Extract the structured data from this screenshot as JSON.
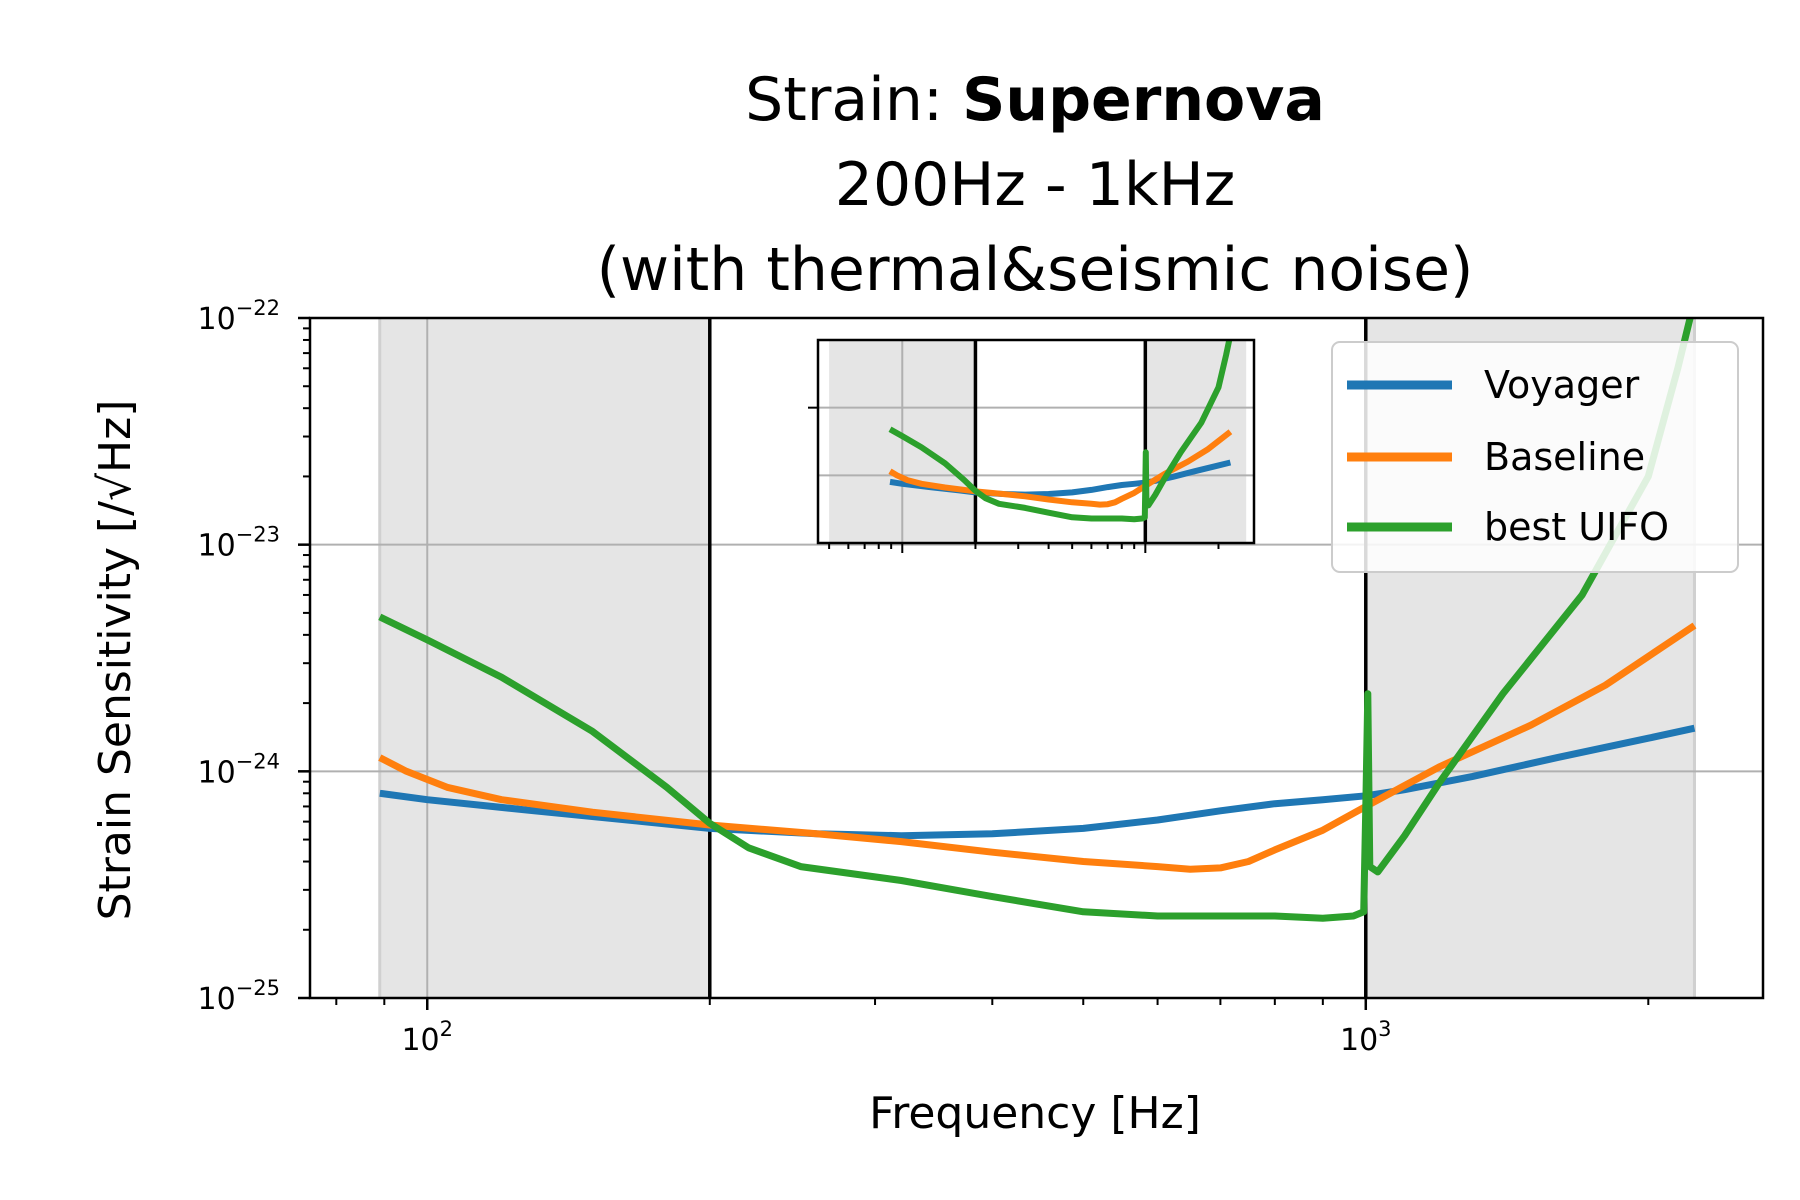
{
  "chart_data": {
    "type": "line",
    "title_prefix": "Strain: ",
    "title_bold": "Supernova",
    "title_line2": "200Hz - 1kHz",
    "title_line3": "(with thermal&seismic noise)",
    "xlabel": "Frequency [Hz]",
    "ylabel": "Strain Sensitivity [/√Hz]",
    "xscale": "log",
    "yscale": "log",
    "xlim": [
      75,
      2650
    ],
    "ylim": [
      1e-25,
      1e-22
    ],
    "grid": true,
    "legend_position": "top-right",
    "x_tick_labels": [
      {
        "value": 100,
        "base": "10",
        "exp": "2"
      },
      {
        "value": 1000,
        "base": "10",
        "exp": "3"
      }
    ],
    "y_tick_labels": [
      {
        "value": 1e-22,
        "base": "10",
        "exp": "−22"
      },
      {
        "value": 1e-23,
        "base": "10",
        "exp": "−23"
      },
      {
        "value": 1e-24,
        "base": "10",
        "exp": "−24"
      },
      {
        "value": 1e-25,
        "base": "10",
        "exp": "−25"
      }
    ],
    "target_band_hz": [
      200,
      1000
    ],
    "shaded_regions_hz": [
      [
        89,
        200
      ],
      [
        1000,
        2240
      ]
    ],
    "series": [
      {
        "name": "Voyager",
        "color": "#1f77b4",
        "points": [
          [
            89,
            8e-25
          ],
          [
            100,
            7.5e-25
          ],
          [
            130,
            6.7e-25
          ],
          [
            170,
            6e-25
          ],
          [
            200,
            5.6e-25
          ],
          [
            260,
            5.3e-25
          ],
          [
            320,
            5.2e-25
          ],
          [
            400,
            5.3e-25
          ],
          [
            500,
            5.6e-25
          ],
          [
            600,
            6.1e-25
          ],
          [
            700,
            6.7e-25
          ],
          [
            800,
            7.2e-25
          ],
          [
            900,
            7.5e-25
          ],
          [
            1000,
            7.8e-25
          ],
          [
            1100,
            8.3e-25
          ],
          [
            1300,
            9.5e-25
          ],
          [
            1600,
            1.15e-24
          ],
          [
            2000,
            1.4e-24
          ],
          [
            2240,
            1.55e-24
          ]
        ]
      },
      {
        "name": "Baseline",
        "color": "#ff7f0e",
        "points": [
          [
            89,
            1.15e-24
          ],
          [
            95,
            1e-24
          ],
          [
            105,
            8.5e-25
          ],
          [
            120,
            7.5e-25
          ],
          [
            150,
            6.6e-25
          ],
          [
            200,
            5.8e-25
          ],
          [
            260,
            5.3e-25
          ],
          [
            320,
            4.9e-25
          ],
          [
            400,
            4.4e-25
          ],
          [
            500,
            4e-25
          ],
          [
            600,
            3.8e-25
          ],
          [
            650,
            3.7e-25
          ],
          [
            700,
            3.75e-25
          ],
          [
            750,
            4e-25
          ],
          [
            800,
            4.5e-25
          ],
          [
            900,
            5.5e-25
          ],
          [
            1000,
            7e-25
          ],
          [
            1200,
            1.05e-24
          ],
          [
            1500,
            1.6e-24
          ],
          [
            1800,
            2.4e-24
          ],
          [
            2240,
            4.4e-24
          ]
        ]
      },
      {
        "name": "best UIFO",
        "color": "#2ca02c",
        "points": [
          [
            89,
            4.8e-24
          ],
          [
            100,
            3.8e-24
          ],
          [
            120,
            2.6e-24
          ],
          [
            150,
            1.5e-24
          ],
          [
            180,
            8.5e-25
          ],
          [
            200,
            5.9e-25
          ],
          [
            220,
            4.6e-25
          ],
          [
            250,
            3.8e-25
          ],
          [
            320,
            3.3e-25
          ],
          [
            400,
            2.8e-25
          ],
          [
            500,
            2.4e-25
          ],
          [
            600,
            2.3e-25
          ],
          [
            700,
            2.3e-25
          ],
          [
            800,
            2.3e-25
          ],
          [
            900,
            2.25e-25
          ],
          [
            970,
            2.3e-25
          ],
          [
            995,
            2.4e-25
          ],
          [
            1000,
            7e-25
          ],
          [
            1005,
            2.2e-24
          ],
          [
            1010,
            3.8e-25
          ],
          [
            1030,
            3.6e-25
          ],
          [
            1100,
            5.2e-25
          ],
          [
            1200,
            9e-25
          ],
          [
            1400,
            2.2e-24
          ],
          [
            1700,
            6e-24
          ],
          [
            2000,
            2e-23
          ],
          [
            2150,
            6e-23
          ],
          [
            2240,
            1.2e-22
          ]
        ]
      }
    ]
  },
  "inset": {
    "xlim": [
      45,
      2800
    ],
    "ylim": [
      1e-25,
      1e-22
    ],
    "inner_lines_hz": [
      200,
      1000
    ],
    "shaded_regions_hz": [
      [
        50,
        200
      ],
      [
        1000,
        2600
      ]
    ]
  }
}
